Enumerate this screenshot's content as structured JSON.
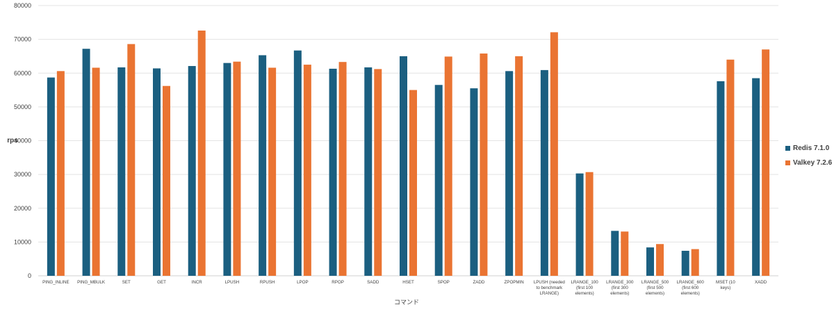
{
  "chart_data": {
    "type": "bar",
    "xlabel": "コマンド",
    "ylabel": "rps",
    "ylim": [
      0,
      80000
    ],
    "y_ticks": [
      0,
      10000,
      20000,
      30000,
      40000,
      50000,
      60000,
      70000,
      80000
    ],
    "grid": true,
    "legend_position": "right",
    "categories": [
      "PING_INLINE",
      "PING_MBULK",
      "SET",
      "GET",
      "INCR",
      "LPUSH",
      "RPUSH",
      "LPOP",
      "RPOP",
      "SADD",
      "HSET",
      "SPOP",
      "ZADD",
      "ZPOPMIN",
      "LPUSH (needed to benchmark LRANGE)",
      "LRANGE_100 (first 100 elements)",
      "LRANGE_300 (first 300 elements)",
      "LRANGE_500 (first 500 elements)",
      "LRANGE_600 (first 600 elements)",
      "MSET (10 keys)",
      "XADD"
    ],
    "series": [
      {
        "name": "Redis 7.1.0",
        "color": "#1b5f80",
        "values": [
          58700,
          67200,
          61700,
          61400,
          62100,
          63000,
          65300,
          66700,
          61300,
          61700,
          65000,
          56500,
          55500,
          60600,
          60900,
          30300,
          13300,
          8400,
          7400,
          57600,
          58500
        ]
      },
      {
        "name": "Valkey 7.2.6",
        "color": "#ea7432",
        "values": [
          60600,
          61600,
          68600,
          56200,
          72600,
          63400,
          61600,
          62500,
          63300,
          61200,
          55000,
          64900,
          65800,
          65000,
          72100,
          30700,
          13100,
          9400,
          7900,
          64000,
          67000
        ]
      }
    ]
  }
}
